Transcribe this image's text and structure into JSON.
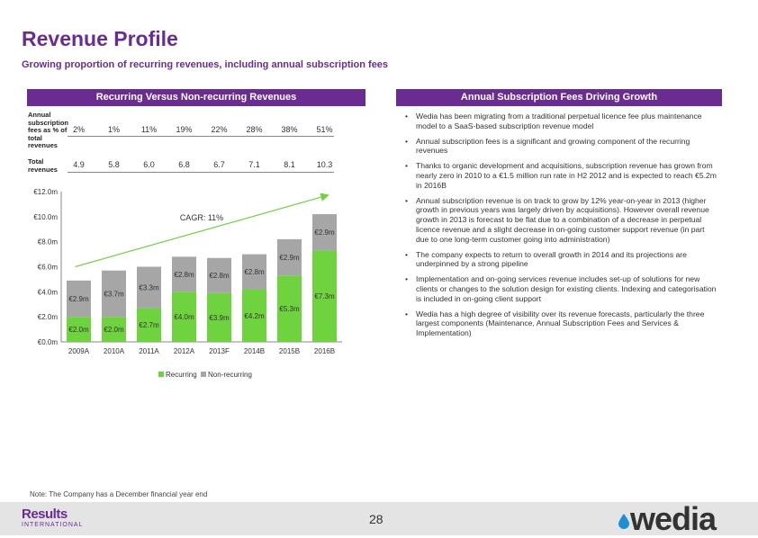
{
  "header": {
    "title": "Revenue Profile",
    "subtitle": "Growing proportion of recurring revenues, including annual subscription fees"
  },
  "left_panel": {
    "heading": "Recurring Versus Non-recurring Revenues",
    "row1_label": "Annual subscription fees as % of total revenues",
    "row1_values": [
      "2%",
      "1%",
      "11%",
      "19%",
      "22%",
      "28%",
      "38%",
      "51%"
    ],
    "row2_label": "Total revenues",
    "row2_values": [
      "4.9",
      "5.8",
      "6.0",
      "6.8",
      "6.7",
      "7.1",
      "8.1",
      "10.3"
    ]
  },
  "chart_data": {
    "type": "bar",
    "stacked": true,
    "categories": [
      "2009A",
      "2010A",
      "2011A",
      "2012A",
      "2013F",
      "2014B",
      "2015B",
      "2016B"
    ],
    "series": [
      {
        "name": "Recurring",
        "color": "#6fd33f",
        "values": [
          2.0,
          2.0,
          2.7,
          4.0,
          3.9,
          4.2,
          5.3,
          7.3
        ],
        "labels": [
          "€2.0m",
          "€2.0m",
          "€2.7m",
          "€4.0m",
          "€3.9m",
          "€4.2m",
          "€5.3m",
          "€7.3m"
        ]
      },
      {
        "name": "Non-recurring",
        "color": "#a6a6a6",
        "values": [
          2.9,
          3.7,
          3.3,
          2.8,
          2.8,
          2.8,
          2.9,
          2.9
        ],
        "labels": [
          "€2.9m",
          "€3.7m",
          "€3.3m",
          "€2.8m",
          "€2.8m",
          "€2.8m",
          "€2.9m",
          "€2.9m"
        ]
      }
    ],
    "ylim": [
      0,
      12
    ],
    "yticks": [
      0,
      2,
      4,
      6,
      8,
      10,
      12
    ],
    "ytick_labels": [
      "€0.0m",
      "€2.0m",
      "€4.0m",
      "€6.0m",
      "€8.0m",
      "€10.0m",
      "€12.0m"
    ],
    "trend_start": 6.0,
    "trend_end": 11.7,
    "trend_color": "#6fd33f",
    "annotation": "CAGR: 11%",
    "legend_position": "bottom",
    "grid": false
  },
  "right_panel": {
    "heading": "Annual Subscription Fees Driving Growth",
    "bullets": [
      "Wedia has been migrating from a traditional perpetual licence fee plus maintenance model to a SaaS-based subscription revenue model",
      "Annual subscription fees is a significant and growing component of the recurring revenues",
      "Thanks to organic development and acquisitions, subscription revenue has grown from nearly zero in 2010 to a €1.5 million run rate in H2 2012 and is expected to reach €5.2m in 2016B",
      "Annual subscription revenue is on track to grow by 12% year-on-year in 2013 (higher growth in previous years was largely driven by acquisitions). However overall revenue growth in 2013 is forecast to be flat due to a combination of a decrease in perpetual licence revenue and a slight decrease in on-going customer support revenue (in part due to one long-term customer going into administration)",
      "The company expects to return to overall growth in 2014 and its projections are underpinned by a strong pipeline",
      "Implementation and on-going services revenue includes set-up of solutions for new clients or changes to the solution design for existing clients. Indexing and categorisation is included in on-going client support",
      "Wedia has a high degree of visibility over its revenue forecasts, particularly the three largest components (Maintenance, Annual Subscription Fees and Services & Implementation)"
    ]
  },
  "note": "Note: The Company has a December financial year end",
  "footer": {
    "left_logo": "Results",
    "left_logo_sub": "INTERNATIONAL",
    "page_number": "28",
    "right_logo": "wedia"
  },
  "colors": {
    "brand_purple": "#6a2c91",
    "recurring_green": "#6fd33f",
    "nonrecurring_grey": "#a6a6a6"
  }
}
